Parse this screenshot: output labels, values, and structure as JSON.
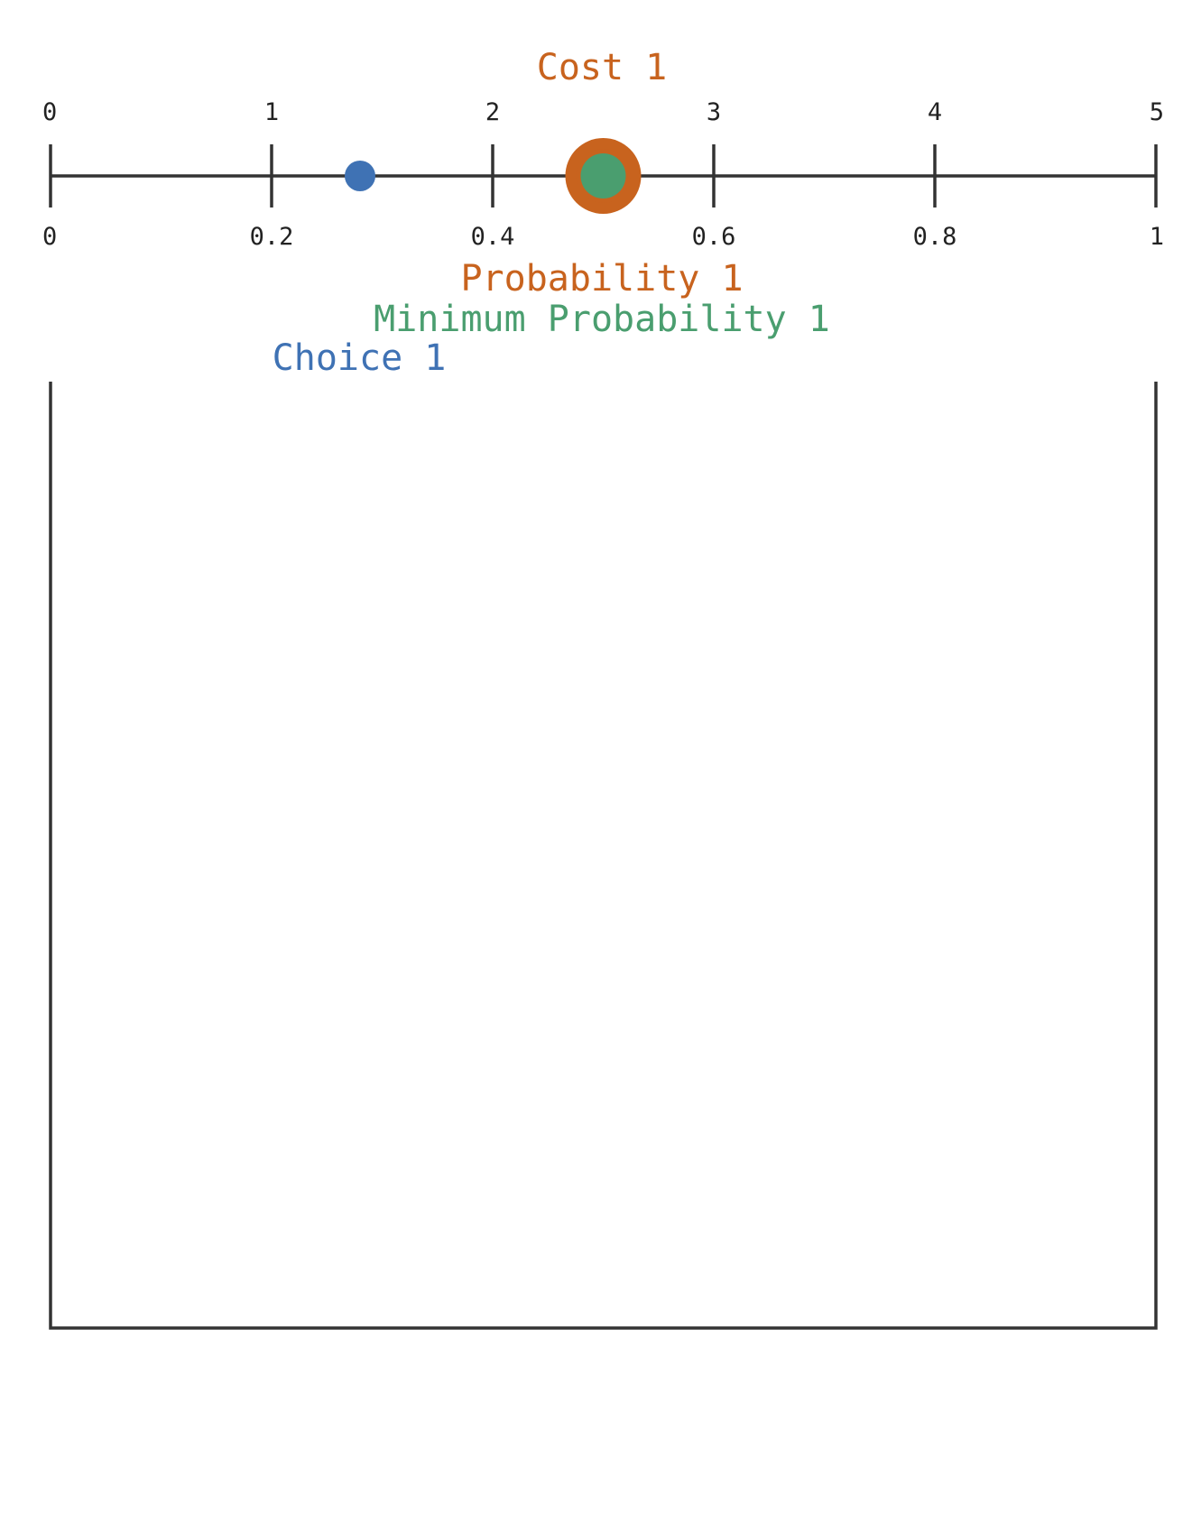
{
  "colors": {
    "axis": "#333333",
    "cost": "#c8631e",
    "min_probability": "#4a9e6f",
    "choice": "#3f72b4"
  },
  "top_axis": {
    "min": 0,
    "max": 5,
    "ticks": [
      "0",
      "1",
      "2",
      "3",
      "4",
      "5"
    ]
  },
  "bottom_axis": {
    "min": 0,
    "max": 1,
    "ticks": [
      "0",
      "0.2",
      "0.4",
      "0.6",
      "0.8",
      "1"
    ]
  },
  "markers": {
    "cost": {
      "label": "Cost 1",
      "value": 2.5
    },
    "probability": {
      "label": "Probability 1",
      "value": 0.5
    },
    "min_probability": {
      "label": "Minimum Probability 1",
      "value": 0.5
    },
    "choice": {
      "label": "Choice 1",
      "value": 0.28
    }
  }
}
